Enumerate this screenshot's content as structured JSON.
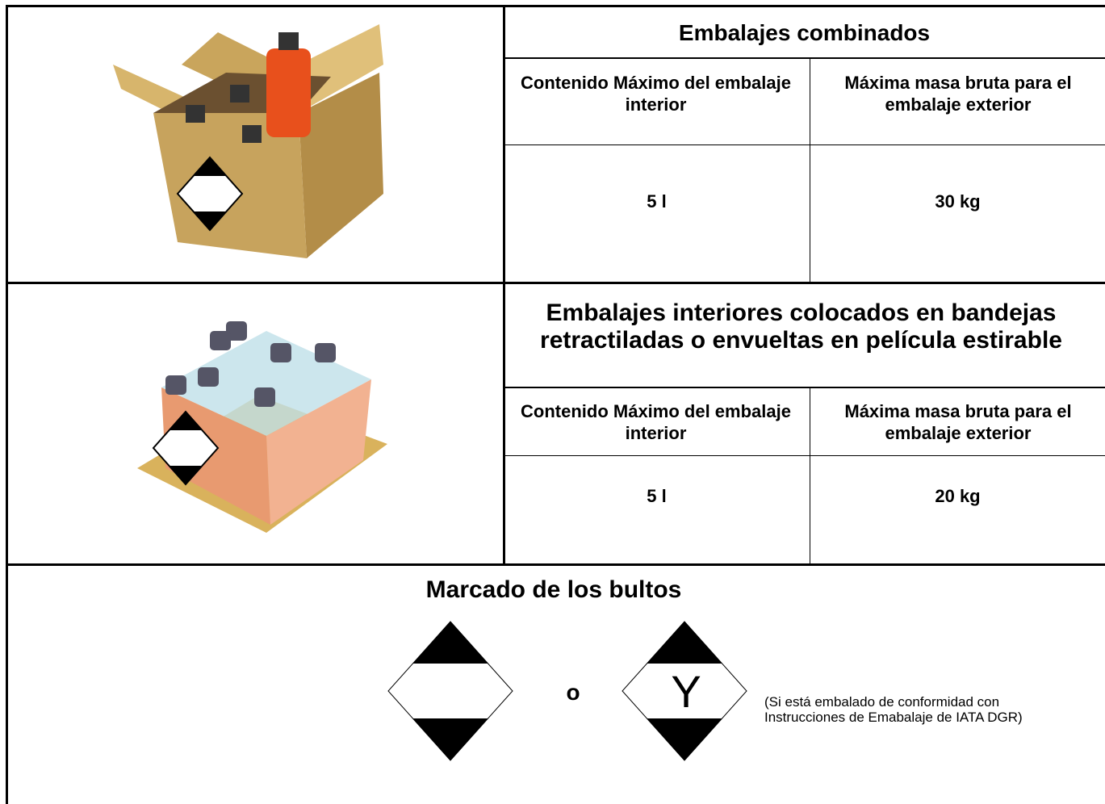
{
  "rows": [
    {
      "title": "Embalajes combinados",
      "headers": [
        "Contenido Máximo del embalaje interior",
        "Máxima masa bruta para el embalaje exterior"
      ],
      "values": [
        "5 l",
        "30 kg"
      ]
    },
    {
      "title": "Embalajes interiores colocados en bandejas retractiladas o envueltas en película estirable",
      "headers": [
        "Contenido Máximo del embalaje interior",
        "Máxima masa bruta para el embalaje exterior"
      ],
      "values": [
        "5 l",
        "20 kg"
      ]
    }
  ],
  "marking": {
    "title": "Marcado de los bultos",
    "separator": "o",
    "symbol": "Y",
    "note": "(Si está embalado de conformidad con Instrucciones de Emabalaje de IATA DGR)"
  }
}
